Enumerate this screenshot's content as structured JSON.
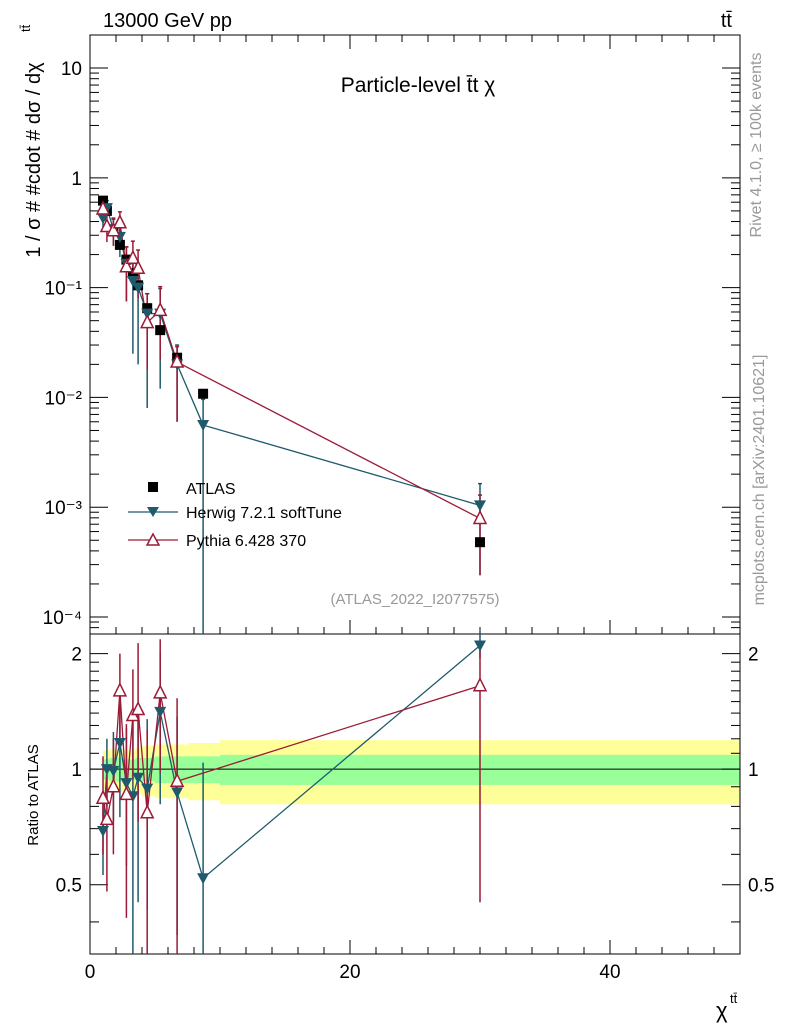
{
  "chart_data": {
    "type": "line",
    "energy_label": "13000 GeV pp",
    "process_label": "tt̄",
    "title": "Particle-level t̄t χ",
    "analysis_id": "(ATLAS_2022_I2077575)",
    "rivet_label": "Rivet 4.1.0, ≥ 100k events",
    "mcplots_label": "mcplots.cern.ch [arXiv:2401.10621]",
    "ylabel_main": "1 / σ # #cdot # dσ / dχ",
    "ylabel_main_sup": "tt̄",
    "ylabel_ratio": "Ratio to ATLAS",
    "xlabel": "χ",
    "xlabel_sup": "tt̄",
    "xlim": [
      0,
      50
    ],
    "ylim_main": [
      7e-05,
      20
    ],
    "ylim_ratio": [
      0.33,
      2.25
    ],
    "main_ytick_labels": [
      "10",
      "1",
      "10⁻¹",
      "10⁻²",
      "10⁻³",
      "10⁻⁴"
    ],
    "main_ytick_values": [
      10,
      1,
      0.1,
      0.01,
      0.001,
      0.0001
    ],
    "ratio_ytick_labels": [
      "0.5",
      "1",
      "2"
    ],
    "ratio_ytick_values": [
      0.5,
      1,
      2
    ],
    "xtick_labels": [
      "0",
      "20",
      "40"
    ],
    "xtick_values": [
      0,
      20,
      40
    ],
    "bin_edges": [
      1,
      1.5,
      2,
      2.5,
      3,
      3.5,
      4,
      5,
      6,
      7.5,
      10,
      50
    ],
    "data": {
      "name": "ATLAS",
      "x": [
        1.0,
        1.3,
        1.8,
        2.3,
        2.8,
        3.3,
        3.7,
        4.4,
        5.4,
        6.7,
        8.7,
        30
      ],
      "y": [
        0.62,
        0.5,
        0.34,
        0.245,
        0.18,
        0.135,
        0.105,
        0.065,
        0.041,
        0.023,
        0.0108,
        0.00048
      ],
      "color": "#000000"
    },
    "series": [
      {
        "name": "Herwig 7.2.1 softTune",
        "color": "#1f5a6c",
        "x": [
          1.0,
          1.3,
          1.8,
          2.3,
          2.8,
          3.3,
          3.7,
          4.4,
          5.4,
          6.7,
          8.7,
          30
        ],
        "y": [
          0.43,
          0.53,
          0.34,
          0.29,
          0.165,
          0.115,
          0.1,
          0.058,
          0.058,
          0.02,
          0.0056,
          0.00104
        ],
        "err_up": [
          0.1,
          0.09,
          0.08,
          0.09,
          0.07,
          0.07,
          0.06,
          0.03,
          0.04,
          0.01,
          0.004,
          0.0006
        ],
        "err_down": [
          0.09,
          0.08,
          0.1,
          0.1,
          0.09,
          0.09,
          0.08,
          0.05,
          0.046,
          0.014,
          0.0056,
          0.0008
        ],
        "ratio": [
          0.69,
          1.0,
          0.99,
          1.17,
          0.92,
          0.85,
          0.95,
          0.89,
          1.41,
          0.87,
          0.52,
          2.1
        ],
        "ratio_err_up": [
          0.16,
          0.2,
          0.26,
          0.42,
          0.36,
          0.52,
          0.5,
          0.46,
          0.6,
          0.5,
          0.52,
          0.15
        ],
        "ratio_err_down": [
          0.16,
          0.2,
          0.26,
          0.42,
          0.36,
          0.52,
          0.5,
          0.46,
          0.6,
          0.5,
          0.3,
          0.15
        ],
        "marker": "triangle-down"
      },
      {
        "name": "Pythia 6.428 370",
        "color": "#9c1a36",
        "x": [
          1.0,
          1.3,
          1.8,
          2.3,
          2.8,
          3.3,
          3.7,
          4.4,
          5.4,
          6.7,
          30
        ],
        "y": [
          0.52,
          0.36,
          0.33,
          0.39,
          0.155,
          0.185,
          0.15,
          0.048,
          0.062,
          0.021,
          0.00079
        ],
        "err_up": [
          0.15,
          0.12,
          0.1,
          0.1,
          0.08,
          0.08,
          0.07,
          0.04,
          0.04,
          0.008,
          0.0005
        ],
        "err_down": [
          0.12,
          0.1,
          0.09,
          0.1,
          0.08,
          0.08,
          0.07,
          0.03,
          0.04,
          0.015,
          0.00055
        ],
        "ratio": [
          0.84,
          0.74,
          0.9,
          1.6,
          0.86,
          1.38,
          1.43,
          0.77,
          1.58,
          0.93,
          1.65
        ],
        "ratio_err_up": [
          0.24,
          0.26,
          0.3,
          0.4,
          0.45,
          0.44,
          0.7,
          0.5,
          0.6,
          0.6,
          0.4
        ],
        "ratio_err_down": [
          0.24,
          0.26,
          0.3,
          0.4,
          0.45,
          0.44,
          0.7,
          0.5,
          0.6,
          0.6,
          1.2
        ],
        "marker": "triangle-up-open"
      }
    ],
    "band_inner": [
      0.06,
      0.07,
      0.07,
      0.06,
      0.06,
      0.07,
      0.07,
      0.08,
      0.08,
      0.08,
      0.09,
      0.08
    ],
    "band_outer": [
      0.12,
      0.13,
      0.13,
      0.12,
      0.12,
      0.14,
      0.15,
      0.16,
      0.16,
      0.17,
      0.19,
      0.17
    ],
    "band_colors": {
      "inner": "#99ff99",
      "outer": "#ffff99"
    }
  }
}
